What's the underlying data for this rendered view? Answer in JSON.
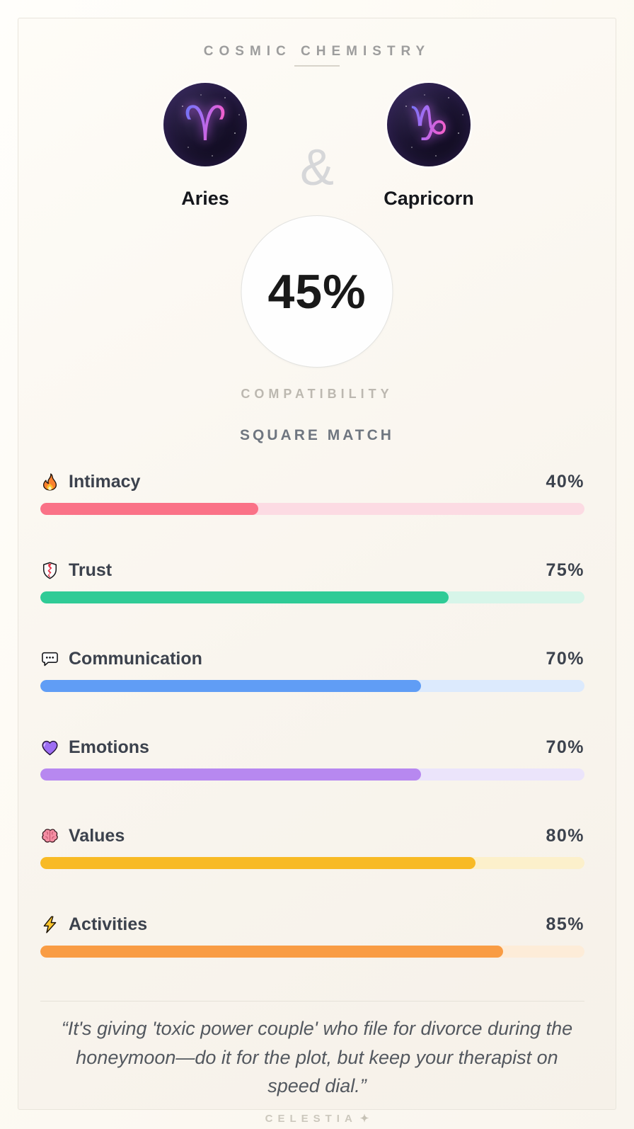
{
  "header": {
    "title": "COSMIC CHEMISTRY"
  },
  "pair": {
    "left": {
      "name": "Aries",
      "symbol": "♈"
    },
    "right": {
      "name": "Capricorn",
      "symbol": "♑"
    },
    "separator": "&"
  },
  "score": {
    "value": "45%",
    "label": "COMPATIBILITY",
    "match_type": "SQUARE MATCH"
  },
  "metrics": [
    {
      "label": "Intimacy",
      "icon": "fire-icon",
      "value": 40,
      "display": "40%",
      "fill": "#fa7287",
      "track": "#fcdbe3"
    },
    {
      "label": "Trust",
      "icon": "shield-icon",
      "value": 75,
      "display": "75%",
      "fill": "#2fcb96",
      "track": "#d7f5e9"
    },
    {
      "label": "Communication",
      "icon": "speech-bubble-icon",
      "value": 70,
      "display": "70%",
      "fill": "#609df5",
      "track": "#dceafd"
    },
    {
      "label": "Emotions",
      "icon": "purple-heart-icon",
      "value": 70,
      "display": "70%",
      "fill": "#b788f0",
      "track": "#ebe4fb"
    },
    {
      "label": "Values",
      "icon": "brain-icon",
      "value": 80,
      "display": "80%",
      "fill": "#f8ba25",
      "track": "#fcf0cb"
    },
    {
      "label": "Activities",
      "icon": "lightning-icon",
      "value": 85,
      "display": "85%",
      "fill": "#f99c44",
      "track": "#fdecd8"
    }
  ],
  "quote": {
    "full": "“It's giving 'toxic power couple' who file for divorce during the honeymoon—do it for the plot, but keep your therapist on speed dial.”",
    "line1": "“It's giving 'toxic power couple' who file for divorce during the",
    "line2": "honeymoon—do it for the plot, but keep your therapist on",
    "line3": "speed dial.”"
  },
  "footer": {
    "brand": "CELESTIA",
    "sparkle": "✦"
  }
}
